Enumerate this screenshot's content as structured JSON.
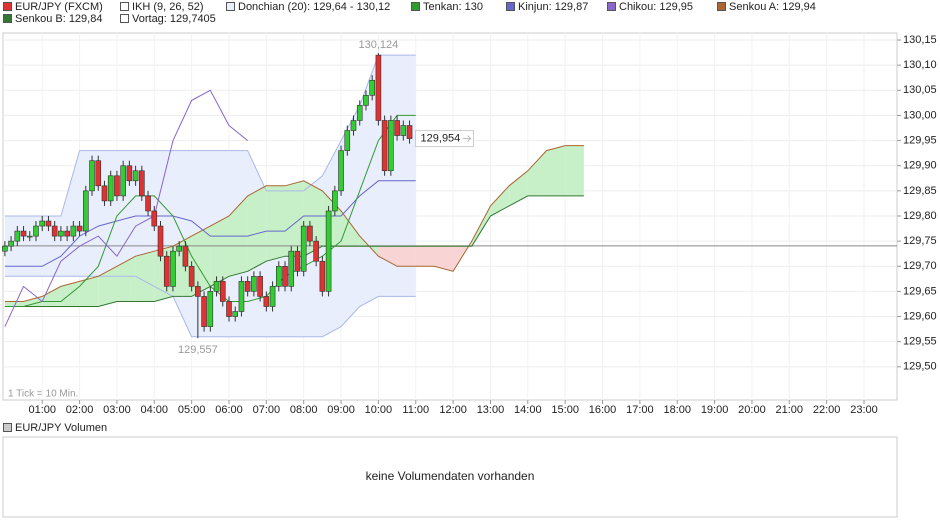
{
  "chart_data": {
    "type": "candlestick",
    "xlim": [
      -3,
      1433
    ],
    "ylim": [
      129.434,
      130.164
    ],
    "xticks": [
      {
        "value": 60,
        "label": "01:00"
      },
      {
        "value": 120,
        "label": "02:00"
      },
      {
        "value": 180,
        "label": "03:00"
      },
      {
        "value": 240,
        "label": "04:00"
      },
      {
        "value": 300,
        "label": "05:00"
      },
      {
        "value": 360,
        "label": "06:00"
      },
      {
        "value": 420,
        "label": "07:00"
      },
      {
        "value": 480,
        "label": "08:00"
      },
      {
        "value": 540,
        "label": "09:00"
      },
      {
        "value": 600,
        "label": "10:00"
      },
      {
        "value": 660,
        "label": "11:00"
      },
      {
        "value": 720,
        "label": "12:00"
      },
      {
        "value": 780,
        "label": "13:00"
      },
      {
        "value": 840,
        "label": "14:00"
      },
      {
        "value": 900,
        "label": "15:00"
      },
      {
        "value": 960,
        "label": "16:00"
      },
      {
        "value": 1020,
        "label": "17:00"
      },
      {
        "value": 1080,
        "label": "18:00"
      },
      {
        "value": 1140,
        "label": "19:00"
      },
      {
        "value": 1200,
        "label": "20:00"
      },
      {
        "value": 1260,
        "label": "21:00"
      },
      {
        "value": 1320,
        "label": "22:00"
      },
      {
        "value": 1380,
        "label": "23:00"
      }
    ],
    "yticks": [
      {
        "value": 129.5,
        "label": "129,50"
      },
      {
        "value": 129.55,
        "label": "129,55"
      },
      {
        "value": 129.6,
        "label": "129,60"
      },
      {
        "value": 129.65,
        "label": "129,65"
      },
      {
        "value": 129.7,
        "label": "129,70"
      },
      {
        "value": 129.75,
        "label": "129,75"
      },
      {
        "value": 129.8,
        "label": "129,80"
      },
      {
        "value": 129.85,
        "label": "129,85"
      },
      {
        "value": 129.9,
        "label": "129,90"
      },
      {
        "value": 129.95,
        "label": "129,95"
      },
      {
        "value": 130,
        "label": "130,00"
      },
      {
        "value": 130.05,
        "label": "130,05"
      },
      {
        "value": 130.1,
        "label": "130,10"
      },
      {
        "value": 130.15,
        "label": "130,15"
      }
    ],
    "grid": true,
    "tick_note": "1 Tick = 10 Min.",
    "candles": {
      "name": "EUR/JPY (FXCM)",
      "color": "#dd3333",
      "up_color": "#33cc33",
      "down_color": "#dd3333",
      "x": [
        0,
        10,
        20,
        30,
        40,
        50,
        60,
        70,
        80,
        90,
        100,
        110,
        120,
        130,
        140,
        150,
        160,
        170,
        180,
        190,
        200,
        210,
        220,
        230,
        240,
        250,
        260,
        270,
        280,
        290,
        300,
        310,
        320,
        330,
        340,
        350,
        360,
        370,
        380,
        390,
        400,
        410,
        420,
        430,
        440,
        450,
        460,
        470,
        480,
        490,
        500,
        510,
        520,
        530,
        540,
        550,
        560,
        570,
        580,
        590,
        600,
        610,
        620,
        630,
        640,
        650
      ],
      "open": [
        129.73,
        129.74,
        129.75,
        129.77,
        129.76,
        129.76,
        129.78,
        129.79,
        129.78,
        129.76,
        129.77,
        129.76,
        129.78,
        129.77,
        129.85,
        129.91,
        129.86,
        129.83,
        129.88,
        129.84,
        129.9,
        129.87,
        129.89,
        129.84,
        129.81,
        129.78,
        129.72,
        129.66,
        129.73,
        129.74,
        129.7,
        129.66,
        129.64,
        129.58,
        129.65,
        129.67,
        129.63,
        129.6,
        129.61,
        129.67,
        129.65,
        129.68,
        129.64,
        129.62,
        129.66,
        129.7,
        129.66,
        129.73,
        129.69,
        129.78,
        129.75,
        129.71,
        129.65,
        129.81,
        129.85,
        129.93,
        129.97,
        129.99,
        130.02,
        130.04,
        130.12,
        129.99,
        129.89,
        129.99,
        129.96,
        129.98
      ],
      "high": [
        129.75,
        129.76,
        129.78,
        129.78,
        129.77,
        129.79,
        129.8,
        129.8,
        129.79,
        129.78,
        129.78,
        129.79,
        129.79,
        129.86,
        129.92,
        129.92,
        129.87,
        129.89,
        129.89,
        129.91,
        129.91,
        129.9,
        129.9,
        129.85,
        129.82,
        129.79,
        129.73,
        129.74,
        129.75,
        129.75,
        129.71,
        129.67,
        129.65,
        129.66,
        129.68,
        129.68,
        129.64,
        129.62,
        129.68,
        129.68,
        129.69,
        129.69,
        129.65,
        129.67,
        129.71,
        129.71,
        129.74,
        129.74,
        129.79,
        129.79,
        129.76,
        129.72,
        129.82,
        129.86,
        129.94,
        129.98,
        130,
        130.03,
        130.05,
        130.08,
        130.124,
        130,
        130,
        130,
        129.99,
        129.99
      ],
      "low": [
        129.72,
        129.73,
        129.74,
        129.75,
        129.75,
        129.75,
        129.77,
        129.77,
        129.75,
        129.75,
        129.75,
        129.75,
        129.76,
        129.76,
        129.84,
        129.85,
        129.82,
        129.82,
        129.83,
        129.83,
        129.86,
        129.86,
        129.83,
        129.8,
        129.77,
        129.71,
        129.65,
        129.65,
        129.72,
        129.69,
        129.65,
        129.557,
        129.57,
        129.57,
        129.64,
        129.62,
        129.59,
        129.59,
        129.6,
        129.64,
        129.64,
        129.63,
        129.61,
        129.61,
        129.65,
        129.65,
        129.65,
        129.68,
        129.68,
        129.74,
        129.7,
        129.64,
        129.64,
        129.8,
        129.84,
        129.92,
        129.96,
        129.98,
        130.01,
        130.03,
        129.98,
        129.88,
        129.88,
        129.95,
        129.95,
        129.944
      ],
      "close": [
        129.74,
        129.75,
        129.77,
        129.76,
        129.76,
        129.78,
        129.79,
        129.78,
        129.76,
        129.77,
        129.76,
        129.78,
        129.77,
        129.85,
        129.91,
        129.86,
        129.83,
        129.88,
        129.84,
        129.9,
        129.87,
        129.89,
        129.84,
        129.81,
        129.78,
        129.72,
        129.66,
        129.73,
        129.74,
        129.7,
        129.66,
        129.64,
        129.58,
        129.65,
        129.67,
        129.63,
        129.6,
        129.61,
        129.67,
        129.65,
        129.68,
        129.64,
        129.62,
        129.66,
        129.7,
        129.66,
        129.73,
        129.69,
        129.78,
        129.75,
        129.71,
        129.65,
        129.81,
        129.85,
        129.93,
        129.97,
        129.99,
        130.02,
        130.04,
        130.07,
        129.99,
        129.89,
        129.99,
        129.96,
        129.98,
        129.954
      ]
    },
    "high_note": {
      "x": 600,
      "value": 130.124,
      "label": "130,124"
    },
    "low_note": {
      "x": 310,
      "value": 129.557,
      "label": "129,557"
    },
    "last_price": {
      "value": 129.954,
      "label": "129,954"
    },
    "ikh": {
      "label": "IKH (9, 26, 52)",
      "color": "#ffffff"
    },
    "donchian": {
      "name": "Donchian (20): 129,64 - 130,12",
      "color": "#aab8e8",
      "fill": "#e8eefb",
      "x": [
        0,
        30,
        60,
        90,
        120,
        150,
        180,
        210,
        240,
        270,
        300,
        330,
        360,
        390,
        420,
        450,
        480,
        510,
        540,
        570,
        600,
        630,
        660
      ],
      "upper": [
        129.8,
        129.8,
        129.8,
        129.8,
        129.93,
        129.93,
        129.93,
        129.93,
        129.93,
        129.93,
        129.93,
        129.93,
        129.93,
        129.93,
        129.85,
        129.85,
        129.85,
        129.88,
        129.95,
        130.02,
        130.12,
        130.12,
        130.12
      ],
      "lower": [
        129.68,
        129.68,
        129.68,
        129.68,
        129.68,
        129.68,
        129.68,
        129.68,
        129.66,
        129.64,
        129.56,
        129.56,
        129.56,
        129.56,
        129.56,
        129.56,
        129.56,
        129.56,
        129.58,
        129.62,
        129.64,
        129.64,
        129.64
      ]
    },
    "tenkan": {
      "name": "Tenkan: 130",
      "color": "#339933",
      "x": [
        0,
        30,
        60,
        90,
        120,
        150,
        180,
        210,
        240,
        270,
        300,
        330,
        360,
        390,
        420,
        450,
        480,
        510,
        540,
        570,
        600,
        630,
        660
      ],
      "values": [
        129.62,
        129.62,
        129.63,
        129.63,
        129.66,
        129.7,
        129.8,
        129.84,
        129.84,
        129.8,
        129.72,
        129.66,
        129.63,
        129.63,
        129.64,
        129.68,
        129.7,
        129.72,
        129.75,
        129.85,
        129.95,
        130,
        130
      ]
    },
    "kijun": {
      "name": "Kinjun: 129,87",
      "color": "#6666cc",
      "x": [
        0,
        30,
        60,
        90,
        120,
        150,
        180,
        210,
        240,
        270,
        300,
        330,
        360,
        390,
        420,
        450,
        480,
        510,
        540,
        570,
        600,
        630,
        660
      ],
      "values": [
        129.7,
        129.7,
        129.7,
        129.72,
        129.76,
        129.78,
        129.79,
        129.8,
        129.8,
        129.8,
        129.79,
        129.76,
        129.76,
        129.76,
        129.77,
        129.77,
        129.8,
        129.8,
        129.8,
        129.84,
        129.87,
        129.87,
        129.87
      ]
    },
    "chikou": {
      "name": "Chikou: 129,95",
      "color": "#8866cc",
      "x": [
        0,
        30,
        60,
        90,
        120,
        150,
        180,
        210,
        240,
        270,
        300,
        330,
        360,
        390
      ],
      "values": [
        129.58,
        129.66,
        129.63,
        129.71,
        129.74,
        129.76,
        129.72,
        129.78,
        129.8,
        129.95,
        130.03,
        130.05,
        129.98,
        129.95
      ]
    },
    "senkou_a": {
      "name": "Senkou A: 129,94",
      "color": "#aa6633",
      "x": [
        0,
        30,
        60,
        90,
        120,
        150,
        180,
        210,
        240,
        270,
        300,
        330,
        360,
        390,
        420,
        450,
        480,
        510,
        540,
        570,
        600,
        630,
        660,
        690,
        720,
        750,
        780,
        810,
        840,
        870,
        900,
        930
      ],
      "values": [
        129.63,
        129.63,
        129.64,
        129.66,
        129.67,
        129.68,
        129.7,
        129.72,
        129.73,
        129.74,
        129.76,
        129.78,
        129.8,
        129.84,
        129.86,
        129.86,
        129.87,
        129.85,
        129.81,
        129.76,
        129.72,
        129.7,
        129.7,
        129.7,
        129.69,
        129.75,
        129.82,
        129.86,
        129.89,
        129.93,
        129.94,
        129.94
      ]
    },
    "senkou_b": {
      "name": "Senkou B: 129,84",
      "color": "#337733",
      "x": [
        0,
        30,
        60,
        90,
        120,
        150,
        180,
        210,
        240,
        270,
        300,
        330,
        360,
        390,
        420,
        450,
        480,
        510,
        540,
        570,
        600,
        630,
        660,
        690,
        720,
        750,
        780,
        810,
        840,
        870,
        900,
        930
      ],
      "values": [
        129.62,
        129.62,
        129.62,
        129.62,
        129.62,
        129.62,
        129.63,
        129.63,
        129.63,
        129.64,
        129.64,
        129.66,
        129.68,
        129.69,
        129.71,
        129.72,
        129.72,
        129.74,
        129.74,
        129.74,
        129.74,
        129.74,
        129.74,
        129.74,
        129.74,
        129.74,
        129.8,
        129.82,
        129.84,
        129.84,
        129.84,
        129.84
      ]
    },
    "cloud_up_color": "#c8f0c8",
    "cloud_down_color": "#f8d4d4",
    "vortag": {
      "name": "Vortag: 129,7405",
      "value": 129.7405,
      "color": "#ffffff",
      "line_color": "#888888"
    },
    "volume": {
      "title": "EUR/JPY Volumen",
      "color": "#cccccc",
      "message": "keine Volumendaten vorhanden"
    }
  }
}
